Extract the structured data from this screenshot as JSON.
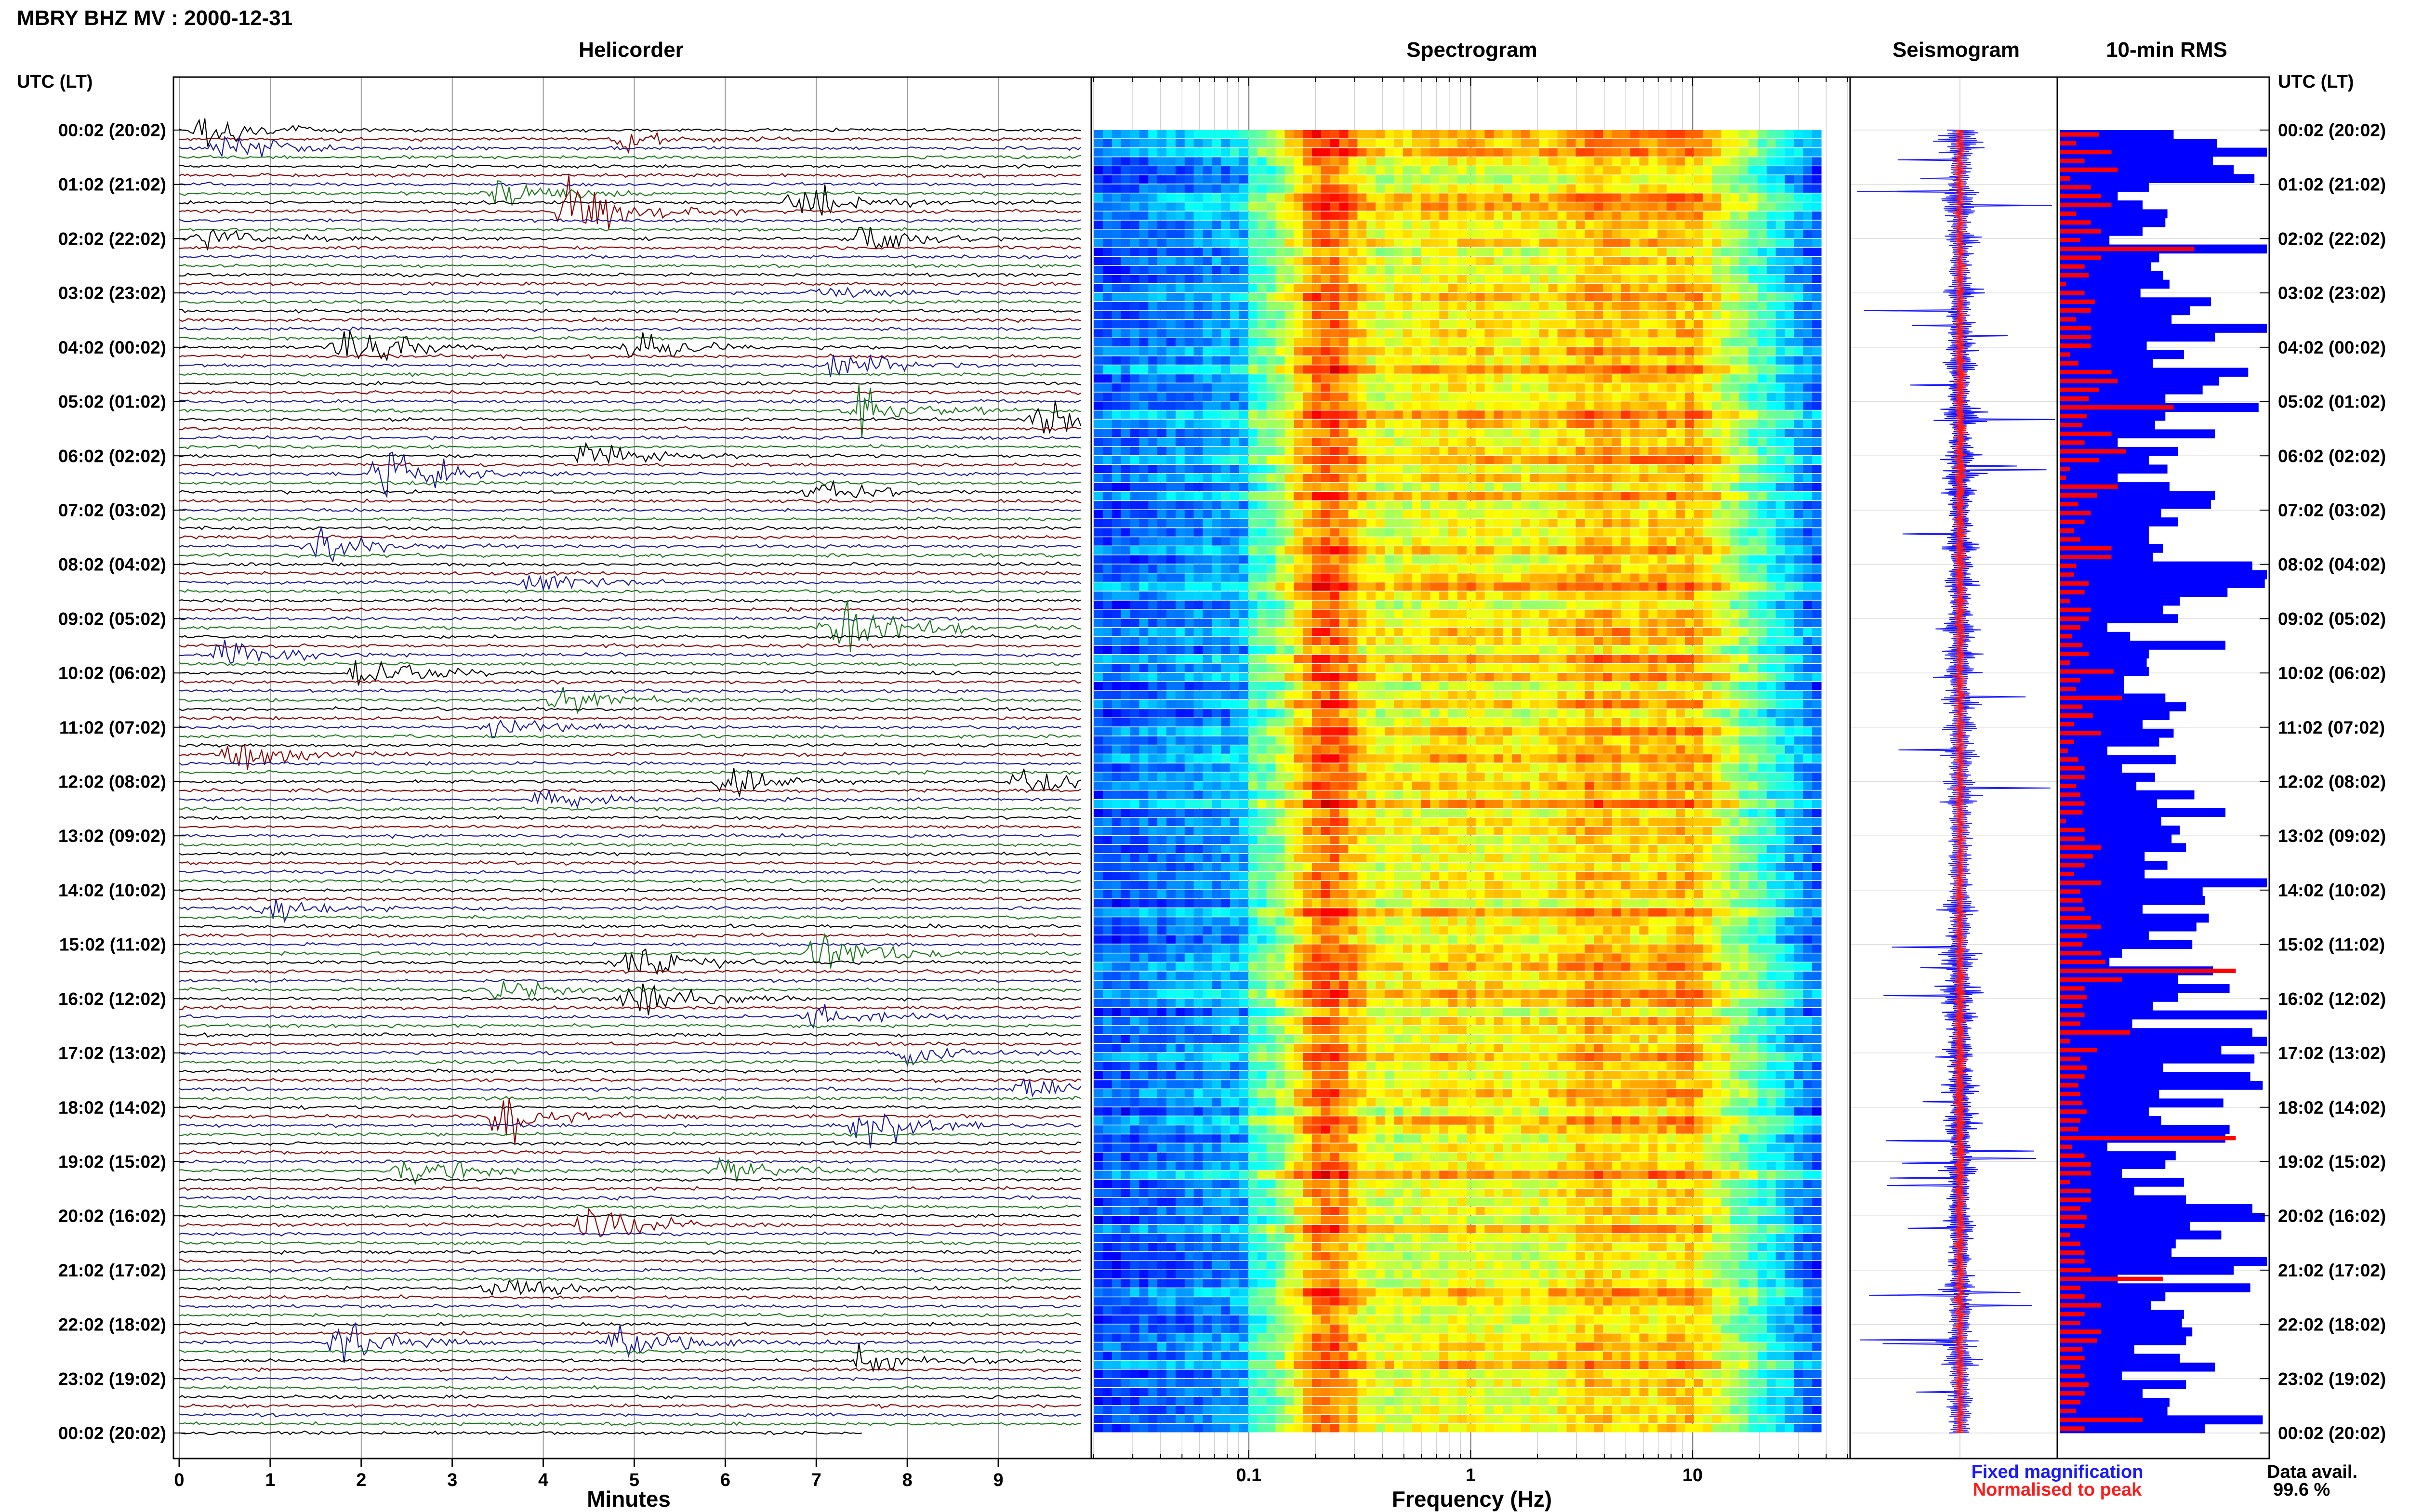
{
  "title": "MBRY BHZ MV : 2000-12-31",
  "panels": {
    "helicorder": "Helicorder",
    "spectrogram": "Spectrogram",
    "seismogram": "Seismogram",
    "rms": "10-min RMS"
  },
  "axis_labels": {
    "time_left": "UTC (LT)",
    "time_right": "UTC (LT)",
    "helicorder_x": "Minutes",
    "spectrogram_x": "Frequency (Hz)"
  },
  "legend": {
    "fixed": "Fixed magnification",
    "normalised": "Normalised to peak",
    "fixed_color": "#1a1aff",
    "normalised_color": "#ff1a1a"
  },
  "data_avail": {
    "label": "Data avail.",
    "value": "99.6 %"
  },
  "colors": {
    "trace_cycle": [
      "#000000",
      "#8b0000",
      "#1a1aa0",
      "#1a7a1a"
    ],
    "rms_fixed": "#0000ff",
    "rms_norm": "#ff0000"
  },
  "chart_data": [
    {
      "type": "line",
      "name": "Helicorder",
      "xlabel": "Minutes",
      "xlim": [
        0,
        10
      ],
      "x_ticks": [
        "0",
        "1",
        "2",
        "3",
        "4",
        "5",
        "6",
        "7",
        "8",
        "9"
      ],
      "lines_per_hour": 6,
      "line_minutes": 10,
      "y_tick_labels": [
        "00:02 (20:02)",
        "01:02 (21:02)",
        "02:02 (22:02)",
        "03:02 (23:02)",
        "04:02 (00:02)",
        "05:02 (01:02)",
        "06:02 (02:02)",
        "07:02 (03:02)",
        "08:02 (04:02)",
        "09:02 (05:02)",
        "10:02 (06:02)",
        "11:02 (07:02)",
        "12:02 (08:02)",
        "13:02 (09:02)",
        "14:02 (10:02)",
        "15:02 (11:02)",
        "16:02 (12:02)",
        "17:02 (13:02)",
        "18:02 (14:02)",
        "19:02 (15:02)",
        "20:02 (16:02)",
        "21:02 (17:02)",
        "22:02 (18:02)",
        "23:02 (19:02)",
        "00:02 (20:02)"
      ],
      "events": [
        {
          "hour": 0.0,
          "minute": 0.3,
          "amp": 3.0
        },
        {
          "hour": 0.1,
          "minute": 4.9,
          "amp": 1.2
        },
        {
          "hour": 0.3,
          "minute": 0.5,
          "amp": 2.0
        },
        {
          "hour": 1.2,
          "minute": 3.5,
          "amp": 2.0
        },
        {
          "hour": 1.4,
          "minute": 6.8,
          "amp": 2.5
        },
        {
          "hour": 1.5,
          "minute": 4.3,
          "amp": 4.0
        },
        {
          "hour": 2.0,
          "minute": 0.3,
          "amp": 2.0
        },
        {
          "hour": 2.0,
          "minute": 7.5,
          "amp": 2.0
        },
        {
          "hour": 3.0,
          "minute": 7.0,
          "amp": 1.0
        },
        {
          "hour": 4.0,
          "minute": 1.8,
          "amp": 4.5
        },
        {
          "hour": 4.0,
          "minute": 5.0,
          "amp": 2.5
        },
        {
          "hour": 4.4,
          "minute": 7.2,
          "amp": 2.0
        },
        {
          "hour": 5.2,
          "minute": 7.5,
          "amp": 3.5
        },
        {
          "hour": 5.4,
          "minute": 9.5,
          "amp": 2.0
        },
        {
          "hour": 6.0,
          "minute": 4.5,
          "amp": 2.0
        },
        {
          "hour": 6.3,
          "minute": 2.2,
          "amp": 4.0
        },
        {
          "hour": 6.6,
          "minute": 7.0,
          "amp": 2.0
        },
        {
          "hour": 7.6,
          "minute": 1.5,
          "amp": 2.5
        },
        {
          "hour": 8.4,
          "minute": 3.8,
          "amp": 1.5
        },
        {
          "hour": 9.2,
          "minute": 7.2,
          "amp": 5.0
        },
        {
          "hour": 9.6,
          "minute": 0.5,
          "amp": 2.0
        },
        {
          "hour": 10.0,
          "minute": 2.0,
          "amp": 3.0
        },
        {
          "hour": 10.5,
          "minute": 4.2,
          "amp": 2.0
        },
        {
          "hour": 11.0,
          "minute": 3.5,
          "amp": 1.5
        },
        {
          "hour": 11.5,
          "minute": 0.6,
          "amp": 2.5
        },
        {
          "hour": 12.0,
          "minute": 6.0,
          "amp": 2.0
        },
        {
          "hour": 12.0,
          "minute": 9.3,
          "amp": 2.0
        },
        {
          "hour": 12.4,
          "minute": 4.0,
          "amp": 1.5
        },
        {
          "hour": 14.4,
          "minute": 1.0,
          "amp": 1.5
        },
        {
          "hour": 15.1,
          "minute": 7.0,
          "amp": 3.0
        },
        {
          "hour": 15.4,
          "minute": 4.9,
          "amp": 3.0
        },
        {
          "hour": 15.8,
          "minute": 3.5,
          "amp": 1.5
        },
        {
          "hour": 16.0,
          "minute": 5.0,
          "amp": 3.0
        },
        {
          "hour": 16.4,
          "minute": 7.0,
          "amp": 2.5
        },
        {
          "hour": 17.0,
          "minute": 8.0,
          "amp": 1.5
        },
        {
          "hour": 17.6,
          "minute": 9.3,
          "amp": 2.0
        },
        {
          "hour": 18.1,
          "minute": 3.5,
          "amp": 3.5
        },
        {
          "hour": 18.4,
          "minute": 7.5,
          "amp": 3.0
        },
        {
          "hour": 19.1,
          "minute": 2.5,
          "amp": 2.0
        },
        {
          "hour": 19.2,
          "minute": 6.0,
          "amp": 2.0
        },
        {
          "hour": 20.1,
          "minute": 4.5,
          "amp": 3.0
        },
        {
          "hour": 21.4,
          "minute": 3.5,
          "amp": 1.5
        },
        {
          "hour": 22.3,
          "minute": 1.8,
          "amp": 3.0
        },
        {
          "hour": 22.3,
          "minute": 4.8,
          "amp": 3.0
        },
        {
          "hour": 22.6,
          "minute": 7.5,
          "amp": 2.0
        }
      ]
    },
    {
      "type": "heatmap",
      "name": "Spectrogram",
      "xlabel": "Frequency (Hz)",
      "x_scale": "log",
      "xlim": [
        0.02,
        50
      ],
      "x_ticks": [
        "0.1",
        "1",
        "10"
      ],
      "hours": 24,
      "colormap": "jet"
    },
    {
      "type": "line",
      "name": "Seismogram",
      "series": [
        {
          "name": "Fixed magnification"
        },
        {
          "name": "Normalised to peak"
        }
      ]
    },
    {
      "type": "bar",
      "name": "10-min RMS",
      "orientation": "horizontal",
      "series": [
        {
          "name": "Fixed magnification",
          "values": [
            0.55,
            0.76,
            1.0,
            0.74,
            0.84,
            0.94,
            0.43,
            0.28,
            0.4,
            0.52,
            0.51,
            0.4,
            0.24,
            1.0,
            0.48,
            0.44,
            0.5,
            0.53,
            0.39,
            0.73,
            0.63,
            0.54,
            1.0,
            0.75,
            0.42,
            0.6,
            0.45,
            0.91,
            0.77,
            0.69,
            0.51,
            0.96,
            0.51,
            0.46,
            0.75,
            0.28,
            0.57,
            0.43,
            0.52,
            0.28,
            0.53,
            0.75,
            0.73,
            0.49,
            0.57,
            0.43,
            0.43,
            0.5,
            0.45,
            0.93,
            1.0,
            0.99,
            0.81,
            0.58,
            0.5,
            0.57,
            0.23,
            0.34,
            0.8,
            0.43,
            0.42,
            0.43,
            0.31,
            0.31,
            0.51,
            0.61,
            0.53,
            0.4,
            0.55,
            0.48,
            0.23,
            0.56,
            0.3,
            0.46,
            0.37,
            0.65,
            0.47,
            0.8,
            0.49,
            0.58,
            0.54,
            0.61,
            0.41,
            0.52,
            0.41,
            1.0,
            0.69,
            0.7,
            0.4,
            0.72,
            0.66,
            0.43,
            0.64,
            0.3,
            0.24,
            0.74,
            0.57,
            0.82,
            0.57,
            0.45,
            1.0,
            0.35,
            0.93,
            1.0,
            0.78,
            0.94,
            0.5,
            0.92,
            0.98,
            0.48,
            0.79,
            0.43,
            0.49,
            0.82,
            0.8,
            0.23,
            0.56,
            0.51,
            0.3,
            0.6,
            0.36,
            0.61,
            0.93,
            0.99,
            0.63,
            0.78,
            0.56,
            0.54,
            1.0,
            0.84,
            0.28,
            0.92,
            0.51,
            0.44,
            0.6,
            0.59,
            0.64,
            0.61,
            0.36,
            0.58,
            0.75,
            0.3,
            0.61,
            0.4,
            0.53,
            0.52,
            0.98,
            0.7
          ]
        },
        {
          "name": "Normalised to peak",
          "values": [
            0.19,
            0.08,
            0.25,
            0.12,
            0.28,
            0.05,
            0.15,
            0.2,
            0.25,
            0.08,
            0.15,
            0.2,
            0.1,
            0.65,
            0.2,
            0.12,
            0.14,
            0.03,
            0.12,
            0.17,
            0.15,
            0.08,
            0.15,
            0.15,
            0.15,
            0.05,
            0.09,
            0.25,
            0.28,
            0.19,
            0.14,
            0.55,
            0.13,
            0.11,
            0.25,
            0.12,
            0.32,
            0.19,
            0.05,
            0.03,
            0.28,
            0.18,
            0.09,
            0.15,
            0.12,
            0.07,
            0.1,
            0.25,
            0.25,
            0.08,
            0.07,
            0.14,
            0.12,
            0.05,
            0.15,
            0.14,
            0.1,
            0.06,
            0.11,
            0.14,
            0.05,
            0.26,
            0.1,
            0.08,
            0.3,
            0.11,
            0.16,
            0.07,
            0.2,
            0.07,
            0.04,
            0.09,
            0.12,
            0.12,
            0.08,
            0.1,
            0.12,
            0.11,
            0.03,
            0.12,
            0.12,
            0.2,
            0.16,
            0.12,
            0.07,
            0.2,
            0.1,
            0.11,
            0.12,
            0.15,
            0.2,
            0.13,
            0.11,
            0.2,
            0.22,
            0.85,
            0.3,
            0.12,
            0.13,
            0.11,
            0.12,
            0.1,
            0.34,
            0.05,
            0.18,
            0.1,
            0.13,
            0.12,
            0.09,
            0.1,
            0.11,
            0.13,
            0.1,
            0.09,
            0.85,
            0.06,
            0.12,
            0.15,
            0.15,
            0.05,
            0.15,
            0.15,
            0.1,
            0.13,
            0.12,
            0.05,
            0.1,
            0.12,
            0.12,
            0.15,
            0.5,
            0.1,
            0.12,
            0.2,
            0.12,
            0.1,
            0.2,
            0.18,
            0.11,
            0.12,
            0.1,
            0.12,
            0.14,
            0.12,
            0.1,
            0.08,
            0.4,
            0.12
          ]
        }
      ]
    }
  ]
}
